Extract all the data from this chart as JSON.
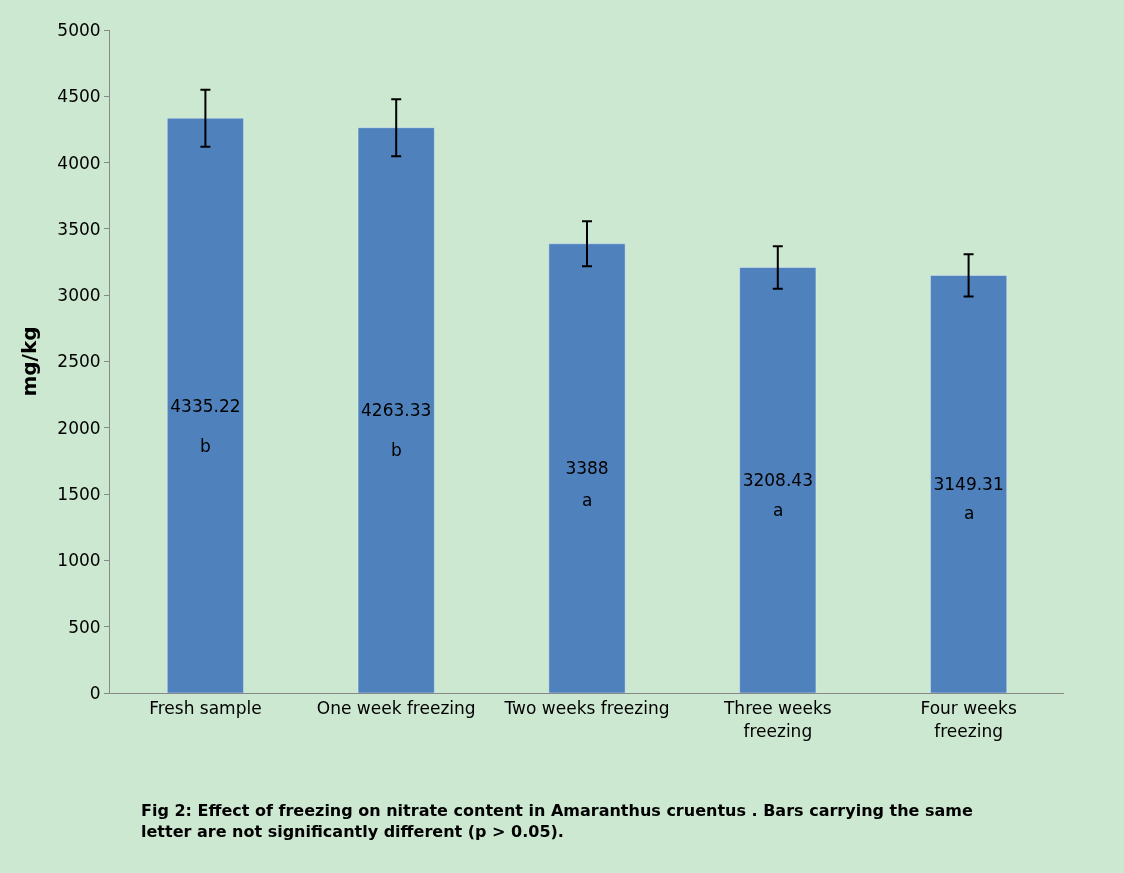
{
  "chart_data": {
    "type": "bar",
    "ylabel": "mg/kg",
    "categories": [
      "Fresh sample",
      "One week freezing",
      "Two weeks freezing",
      "Three weeks freezing",
      "Four weeks freezing"
    ],
    "values": [
      4335.22,
      4263.33,
      3388,
      3208.43,
      3149.31
    ],
    "value_labels": [
      "4335.22",
      "4263.33",
      "3388",
      "3208.43",
      "3149.31"
    ],
    "errors": [
      215,
      215,
      170,
      160,
      160
    ],
    "color": "#4f81bd",
    "ylim": [
      0,
      5000
    ],
    "yticks": [
      0,
      500,
      1000,
      1500,
      2000,
      2500,
      3000,
      3500,
      4000,
      4500,
      5000
    ],
    "grid": false,
    "annotations": [
      "b",
      "b",
      "a",
      "a",
      "a",
      "Fig 2: Effect of freezing on nitrate content in Amaranthus cruentus . Bars carrying the same letter are not significantly different (p > 0.05)."
    ]
  }
}
